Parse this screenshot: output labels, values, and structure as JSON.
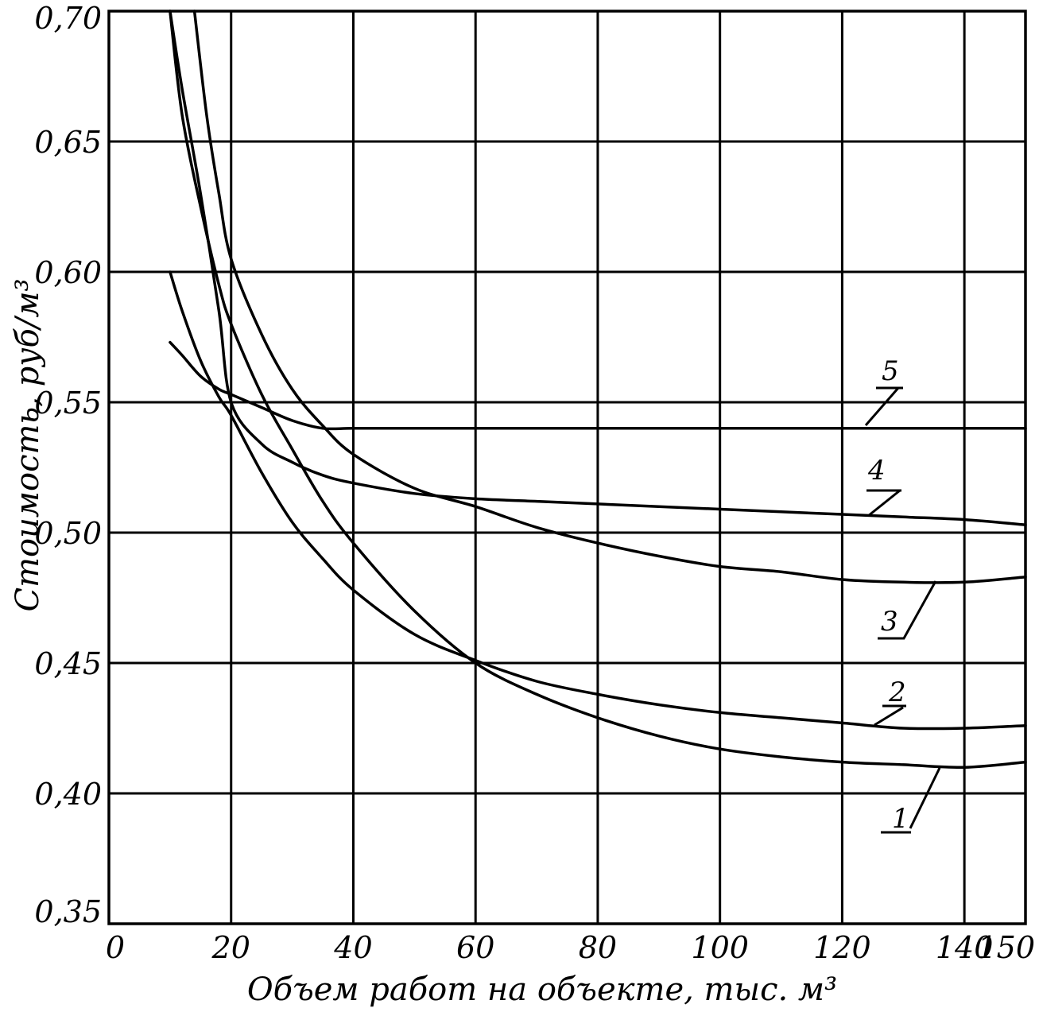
{
  "chart_data": {
    "type": "line",
    "title": "",
    "xlabel": "Объем работ на объекте, тыс. м³",
    "ylabel": "Стоимость, руб/м³",
    "xlim": [
      0,
      150
    ],
    "ylim": [
      0.35,
      0.7
    ],
    "x_ticks": [
      0,
      20,
      40,
      60,
      80,
      100,
      120,
      140,
      150
    ],
    "x_tick_labels": [
      "0",
      "20",
      "40",
      "60",
      "80",
      "100",
      "120",
      "140",
      "150"
    ],
    "y_ticks": [
      0.35,
      0.4,
      0.45,
      0.5,
      0.55,
      0.6,
      0.65,
      0.7
    ],
    "y_tick_labels": [
      "0,35",
      "0,40",
      "0,45",
      "0,50",
      "0,55",
      "0,60",
      "0,65",
      "0,70"
    ],
    "grid": true,
    "legend": "inline labels",
    "series": [
      {
        "name": "1",
        "x": [
          10,
          12,
          15,
          18,
          20,
          25,
          30,
          35,
          40,
          50,
          60,
          70,
          80,
          90,
          100,
          110,
          120,
          130,
          140,
          150
        ],
        "y": [
          0.7,
          0.66,
          0.625,
          0.595,
          0.58,
          0.553,
          0.532,
          0.512,
          0.496,
          0.47,
          0.45,
          0.438,
          0.429,
          0.422,
          0.417,
          0.414,
          0.412,
          0.411,
          0.41,
          0.412
        ]
      },
      {
        "name": "2",
        "x": [
          10,
          12,
          15,
          18,
          20,
          25,
          30,
          35,
          40,
          50,
          60,
          70,
          80,
          90,
          100,
          110,
          120,
          130,
          140,
          150
        ],
        "y": [
          0.6,
          0.585,
          0.566,
          0.552,
          0.545,
          0.523,
          0.504,
          0.49,
          0.478,
          0.461,
          0.451,
          0.443,
          0.438,
          0.434,
          0.431,
          0.429,
          0.427,
          0.425,
          0.425,
          0.426
        ]
      },
      {
        "name": "3",
        "x": [
          14,
          16,
          18,
          20,
          25,
          30,
          35,
          40,
          50,
          60,
          70,
          80,
          90,
          100,
          110,
          120,
          130,
          140,
          150
        ],
        "y": [
          0.7,
          0.66,
          0.63,
          0.605,
          0.576,
          0.555,
          0.541,
          0.53,
          0.517,
          0.51,
          0.502,
          0.496,
          0.491,
          0.487,
          0.485,
          0.482,
          0.481,
          0.481,
          0.483
        ]
      },
      {
        "name": "4",
        "x": [
          10,
          12,
          15,
          18,
          20,
          25,
          30,
          35,
          40,
          50,
          60,
          70,
          80,
          90,
          100,
          110,
          120,
          130,
          140,
          150
        ],
        "y": [
          0.7,
          0.67,
          0.63,
          0.585,
          0.55,
          0.534,
          0.527,
          0.522,
          0.519,
          0.515,
          0.513,
          0.512,
          0.511,
          0.51,
          0.509,
          0.508,
          0.507,
          0.506,
          0.505,
          0.503
        ]
      },
      {
        "name": "5",
        "x": [
          10,
          12,
          15,
          18,
          20,
          25,
          30,
          35,
          40,
          50,
          60,
          70,
          80,
          90,
          100,
          110,
          120,
          130,
          140,
          150
        ],
        "y": [
          0.573,
          0.568,
          0.56,
          0.555,
          0.553,
          0.548,
          0.543,
          0.54,
          0.54,
          0.54,
          0.54,
          0.54,
          0.54,
          0.54,
          0.54,
          0.54,
          0.54,
          0.54,
          0.54,
          0.54
        ]
      }
    ]
  }
}
